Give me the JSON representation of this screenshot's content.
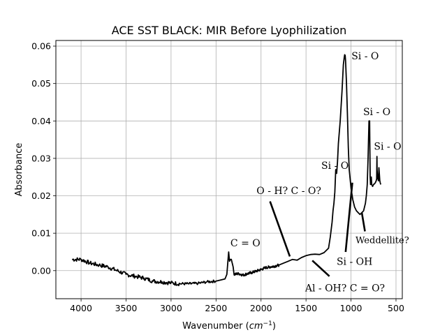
{
  "chart_data": {
    "type": "line",
    "title": "ACE SST BLACK: MIR Before Lyophilization",
    "xlabel_main": "Wavenumber (",
    "xlabel_var": "cm",
    "xlabel_sup": "−1",
    "xlabel_close": ")",
    "ylabel": "Absorbance",
    "xlim": [
      4280,
      430
    ],
    "ylim": [
      -0.0075,
      0.0615
    ],
    "x_reversed": true,
    "grid": true,
    "legend": "none",
    "xticks": [
      4000,
      3500,
      3000,
      2500,
      2000,
      1500,
      1000,
      500
    ],
    "xtick_labels": [
      "4000",
      "3500",
      "3000",
      "2500",
      "2000",
      "1500",
      "1000",
      "500"
    ],
    "yticks": [
      0.0,
      0.01,
      0.02,
      0.03,
      0.04,
      0.05,
      0.06
    ],
    "ytick_labels": [
      "0.00",
      "0.01",
      "0.02",
      "0.03",
      "0.04",
      "0.05",
      "0.06"
    ],
    "series": [
      {
        "color": "#000000",
        "x": [
          4100,
          4000,
          3900,
          3800,
          3700,
          3600,
          3500,
          3400,
          3300,
          3200,
          3100,
          3000,
          2900,
          2800,
          2700,
          2600,
          2500,
          2450,
          2400,
          2380,
          2360,
          2350,
          2340,
          2330,
          2310,
          2300,
          2250,
          2200,
          2150,
          2100,
          2050,
          2000,
          1950,
          1900,
          1850,
          1800,
          1750,
          1700,
          1650,
          1600,
          1550,
          1500,
          1450,
          1400,
          1350,
          1300,
          1250,
          1230,
          1210,
          1200,
          1190,
          1180,
          1170,
          1160,
          1150,
          1140,
          1120,
          1100,
          1085,
          1075,
          1070,
          1065,
          1060,
          1050,
          1040,
          1030,
          1020,
          1000,
          980,
          960,
          940,
          920,
          900,
          880,
          860,
          850,
          840,
          830,
          820,
          810,
          800,
          797,
          795,
          793,
          790,
          787,
          785,
          783,
          780,
          775,
          770,
          760,
          750,
          740,
          730,
          720,
          715,
          712,
          710,
          705,
          700,
          695,
          690,
          685,
          680,
          675,
          670
        ],
        "y": [
          0.003,
          0.003,
          0.002,
          0.0015,
          0.001,
          0.0,
          -0.001,
          -0.0015,
          -0.002,
          -0.0028,
          -0.003,
          -0.0033,
          -0.0035,
          -0.0035,
          -0.0034,
          -0.003,
          -0.0028,
          -0.0025,
          -0.0022,
          -0.001,
          0.005,
          0.0025,
          0.003,
          0.003,
          0.001,
          -0.001,
          -0.0008,
          -0.0012,
          -0.0008,
          -0.0005,
          -0.0001,
          0.0003,
          0.0008,
          0.001,
          0.0012,
          0.0015,
          0.002,
          0.0025,
          0.003,
          0.0028,
          0.0035,
          0.004,
          0.0043,
          0.0044,
          0.0043,
          0.0048,
          0.006,
          0.009,
          0.013,
          0.016,
          0.018,
          0.021,
          0.027,
          0.026,
          0.029,
          0.034,
          0.04,
          0.048,
          0.055,
          0.057,
          0.0577,
          0.0575,
          0.056,
          0.05,
          0.042,
          0.033,
          0.027,
          0.022,
          0.019,
          0.017,
          0.016,
          0.0155,
          0.015,
          0.0155,
          0.016,
          0.017,
          0.018,
          0.02,
          0.023,
          0.03,
          0.04,
          0.035,
          0.0395,
          0.04,
          0.032,
          0.025,
          0.024,
          0.023,
          0.024,
          0.025,
          0.023,
          0.0225,
          0.023,
          0.0232,
          0.0235,
          0.024,
          0.0245,
          0.0305,
          0.027,
          0.025,
          0.0245,
          0.024,
          0.0275,
          0.026,
          0.024,
          0.0235,
          0.023
        ]
      }
    ],
    "annotations": [
      {
        "text": "Si - O",
        "x": 995,
        "y": 0.0565
      },
      {
        "text": "Si - O",
        "x": 865,
        "y": 0.0415
      },
      {
        "text": "Si - O",
        "x": 745,
        "y": 0.0323
      },
      {
        "text": "Si - O",
        "x": 1330,
        "y": 0.0272
      },
      {
        "text": "O - H? C - O?",
        "x": 2050,
        "y": 0.0205
      },
      {
        "text": "C = O",
        "x": 2340,
        "y": 0.0065
      },
      {
        "text": "Weddellite?",
        "x": 950,
        "y": 0.0073
      },
      {
        "text": "Si - OH",
        "x": 1160,
        "y": 0.0015
      },
      {
        "text": "Al - OH? C = O?",
        "x": 1510,
        "y": -0.0055
      }
    ],
    "marker_lines": [
      {
        "x1": 1900,
        "y1": 0.0185,
        "x2": 1680,
        "y2": 0.0038
      },
      {
        "x1": 1430,
        "y1": 0.0027,
        "x2": 1240,
        "y2": -0.0015
      },
      {
        "x1": 1060,
        "y1": 0.005,
        "x2": 985,
        "y2": 0.0235
      },
      {
        "x1": 880,
        "y1": 0.0155,
        "x2": 845,
        "y2": 0.0105
      }
    ]
  }
}
